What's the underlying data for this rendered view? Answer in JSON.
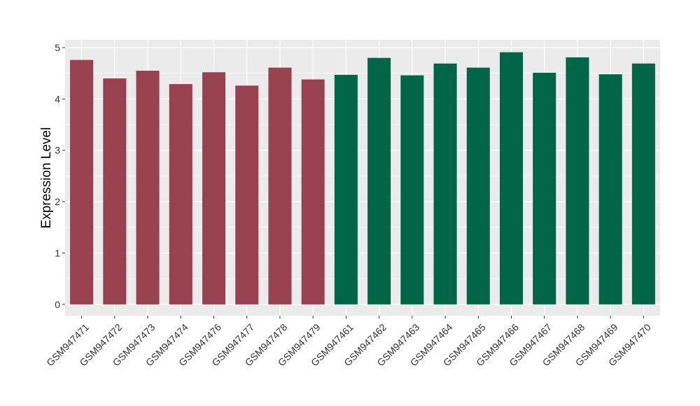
{
  "chart_data": {
    "type": "bar",
    "ylabel": "Expression Level",
    "xlabel": "",
    "ylim": [
      -0.22,
      5.15
    ],
    "yticks": [
      0,
      1,
      2,
      3,
      4,
      5
    ],
    "grid": true,
    "categories": [
      "GSM947471",
      "GSM947472",
      "GSM947473",
      "GSM947474",
      "GSM947476",
      "GSM947477",
      "GSM947478",
      "GSM947479",
      "GSM947461",
      "GSM947462",
      "GSM947463",
      "GSM947464",
      "GSM947465",
      "GSM947466",
      "GSM947467",
      "GSM947468",
      "GSM947469",
      "GSM947470"
    ],
    "values": [
      4.76,
      4.4,
      4.55,
      4.29,
      4.52,
      4.26,
      4.61,
      4.38,
      4.47,
      4.8,
      4.46,
      4.69,
      4.61,
      4.91,
      4.51,
      4.81,
      4.48,
      4.69
    ],
    "bar_colors": [
      "#99424f",
      "#99424f",
      "#99424f",
      "#99424f",
      "#99424f",
      "#99424f",
      "#99424f",
      "#99424f",
      "#006645",
      "#006645",
      "#006645",
      "#006645",
      "#006645",
      "#006645",
      "#006645",
      "#006645",
      "#006645",
      "#006645"
    ],
    "panel_background": "#ebebeb",
    "grid_color": "#ffffff"
  }
}
